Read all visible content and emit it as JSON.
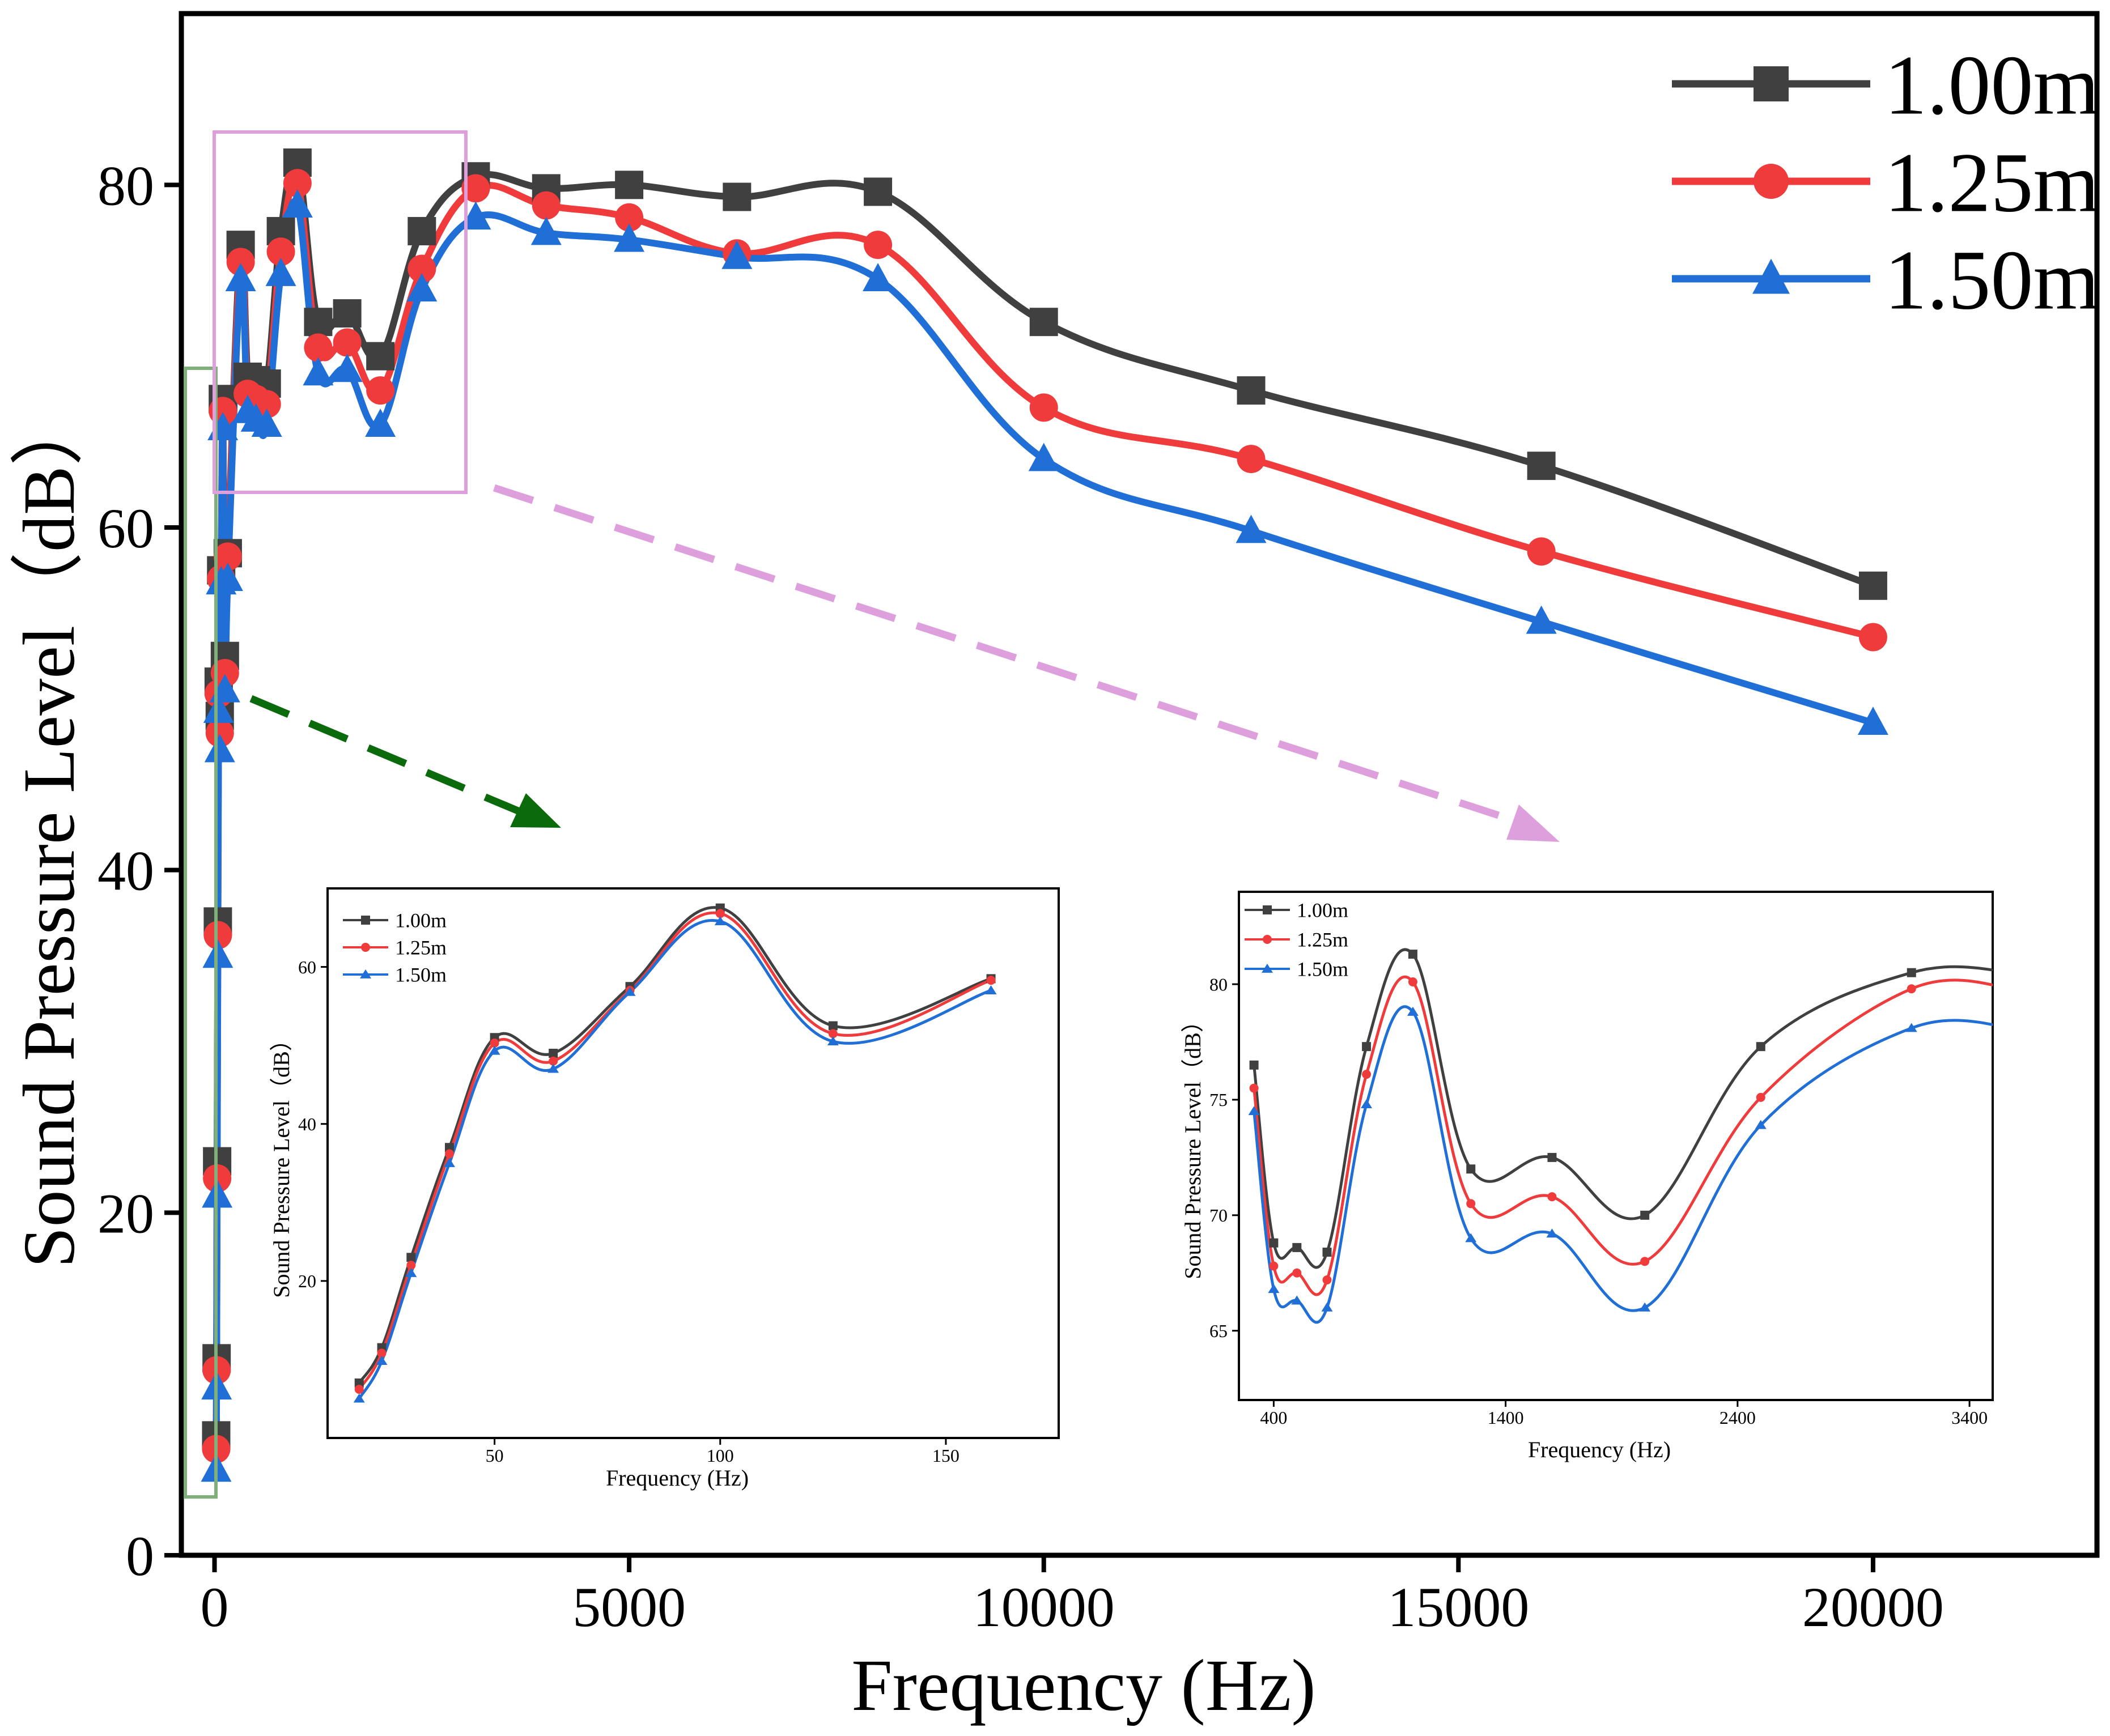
{
  "colors": {
    "s1": "#404040",
    "s2": "#ef3b3b",
    "s3": "#1f6fd6",
    "green_box": "#7fb07a",
    "pink_box": "#dda0dd",
    "green_arrow": "#0b6a0b",
    "pink_arrow": "#dda0dd"
  },
  "chart_data": [
    {
      "id": "main",
      "type": "line",
      "title": "",
      "xlabel": "Frequency (Hz)",
      "ylabel": "Sound Pressure Level（dB）",
      "xlim": [
        -400,
        22700
      ],
      "ylim": [
        0,
        90
      ],
      "xticks": [
        0,
        5000,
        10000,
        15000,
        20000
      ],
      "xtick_labels": [
        "0",
        "5000",
        "10000",
        "15000",
        "20000"
      ],
      "yticks": [
        0,
        20,
        40,
        60,
        80
      ],
      "ytick_labels": [
        "0",
        "20",
        "40",
        "60",
        "80"
      ],
      "legend_position": "top-right",
      "series": [
        {
          "name": "1.00m",
          "marker": "square",
          "x": [
            20,
            25,
            31.5,
            40,
            50,
            63,
            80,
            100,
            125,
            160,
            315,
            400,
            500,
            630,
            800,
            1000,
            1250,
            1600,
            2000,
            2500,
            3150,
            4000,
            5000,
            6300,
            8000,
            10000,
            12500,
            16000,
            20000
          ],
          "y": [
            7,
            11.5,
            23,
            37,
            51,
            49,
            57.5,
            67.5,
            52.5,
            58.5,
            76.5,
            68.8,
            68.6,
            68.4,
            77.3,
            81.3,
            72,
            72.5,
            70,
            77.3,
            80.5,
            79.8,
            80,
            79.3,
            79.6,
            72,
            68,
            63.6,
            56.6
          ]
        },
        {
          "name": "1.25m",
          "marker": "circle",
          "x": [
            20,
            25,
            31.5,
            40,
            50,
            63,
            80,
            100,
            125,
            160,
            315,
            400,
            500,
            630,
            800,
            1000,
            1250,
            1600,
            2000,
            2500,
            3150,
            4000,
            5000,
            6300,
            8000,
            10000,
            12500,
            16000,
            20000
          ],
          "y": [
            6.2,
            10.8,
            22,
            36.2,
            50.3,
            48,
            57,
            66.8,
            51.5,
            58.3,
            75.5,
            67.8,
            67.5,
            67.2,
            76.1,
            80.1,
            70.5,
            70.8,
            68,
            75.1,
            79.8,
            78.8,
            78.1,
            76,
            76.5,
            67,
            64,
            58.6,
            53.6
          ]
        },
        {
          "name": "1.50m",
          "marker": "triangle",
          "x": [
            20,
            25,
            31.5,
            40,
            50,
            63,
            80,
            100,
            125,
            160,
            315,
            400,
            500,
            630,
            800,
            1000,
            1250,
            1600,
            2000,
            2500,
            3150,
            4000,
            5000,
            6300,
            8000,
            10000,
            12500,
            16000,
            20000
          ],
          "y": [
            5,
            9.8,
            21,
            35,
            49.3,
            47,
            56.8,
            65.8,
            50.5,
            57,
            74.5,
            66.8,
            66.3,
            66,
            74.8,
            78.8,
            69,
            69.2,
            66,
            73.9,
            78.1,
            77.2,
            76.8,
            75.8,
            74.5,
            64,
            59.8,
            54.5,
            48.6
          ]
        }
      ]
    },
    {
      "id": "inset1",
      "type": "line",
      "xlabel": "Frequency (Hz)",
      "ylabel": "Sound Pressure Level（dB）",
      "xlim": [
        13,
        175
      ],
      "ylim": [
        0,
        70
      ],
      "xticks": [
        50,
        100,
        150
      ],
      "xtick_labels": [
        "50",
        "100",
        "150"
      ],
      "yticks": [
        20,
        40,
        60
      ],
      "ytick_labels": [
        "20",
        "40",
        "60"
      ],
      "legend_position": "top-left",
      "series": [
        {
          "name": "1.00m",
          "marker": "square",
          "x": [
            20,
            25,
            31.5,
            40,
            50,
            63,
            80,
            100,
            125,
            160
          ],
          "y": [
            7,
            11.5,
            23,
            37,
            51,
            49,
            57.5,
            67.5,
            52.5,
            58.5
          ]
        },
        {
          "name": "1.25m",
          "marker": "circle",
          "x": [
            20,
            25,
            31.5,
            40,
            50,
            63,
            80,
            100,
            125,
            160
          ],
          "y": [
            6.2,
            10.8,
            22,
            36.2,
            50.3,
            48,
            57,
            66.8,
            51.5,
            58.3
          ]
        },
        {
          "name": "1.50m",
          "marker": "triangle",
          "x": [
            20,
            25,
            31.5,
            40,
            50,
            63,
            80,
            100,
            125,
            160
          ],
          "y": [
            5,
            9.8,
            21,
            35,
            49.3,
            47,
            56.8,
            65.8,
            50.5,
            57
          ]
        }
      ]
    },
    {
      "id": "inset2",
      "type": "line",
      "xlabel": "Frequency (Hz)",
      "ylabel": "Sound Pressure Level（dB）",
      "xlim": [
        250,
        3500
      ],
      "ylim": [
        62,
        84
      ],
      "xticks": [
        400,
        1400,
        2400,
        3400
      ],
      "xtick_labels": [
        "400",
        "1400",
        "2400",
        "3400"
      ],
      "yticks": [
        65,
        70,
        75,
        80
      ],
      "ytick_labels": [
        "65",
        "70",
        "75",
        "80"
      ],
      "legend_position": "top-left",
      "series": [
        {
          "name": "1.00m",
          "marker": "square",
          "x": [
            315,
            400,
            500,
            630,
            800,
            1000,
            1250,
            1600,
            2000,
            2500,
            3150
          ],
          "y": [
            76.5,
            68.8,
            68.6,
            68.4,
            77.3,
            81.3,
            72,
            72.5,
            70,
            77.3,
            80.5
          ]
        },
        {
          "name": "1.25m",
          "marker": "circle",
          "x": [
            315,
            400,
            500,
            630,
            800,
            1000,
            1250,
            1600,
            2000,
            2500,
            3150
          ],
          "y": [
            75.5,
            67.8,
            67.5,
            67.2,
            76.1,
            80.1,
            70.5,
            70.8,
            68,
            75.1,
            79.8
          ]
        },
        {
          "name": "1.50m",
          "marker": "triangle",
          "x": [
            315,
            400,
            500,
            630,
            800,
            1000,
            1250,
            1600,
            2000,
            2500,
            3150
          ],
          "y": [
            74.5,
            66.8,
            66.3,
            66,
            74.8,
            78.8,
            69,
            69.2,
            66,
            73.9,
            78.1
          ]
        }
      ]
    }
  ]
}
